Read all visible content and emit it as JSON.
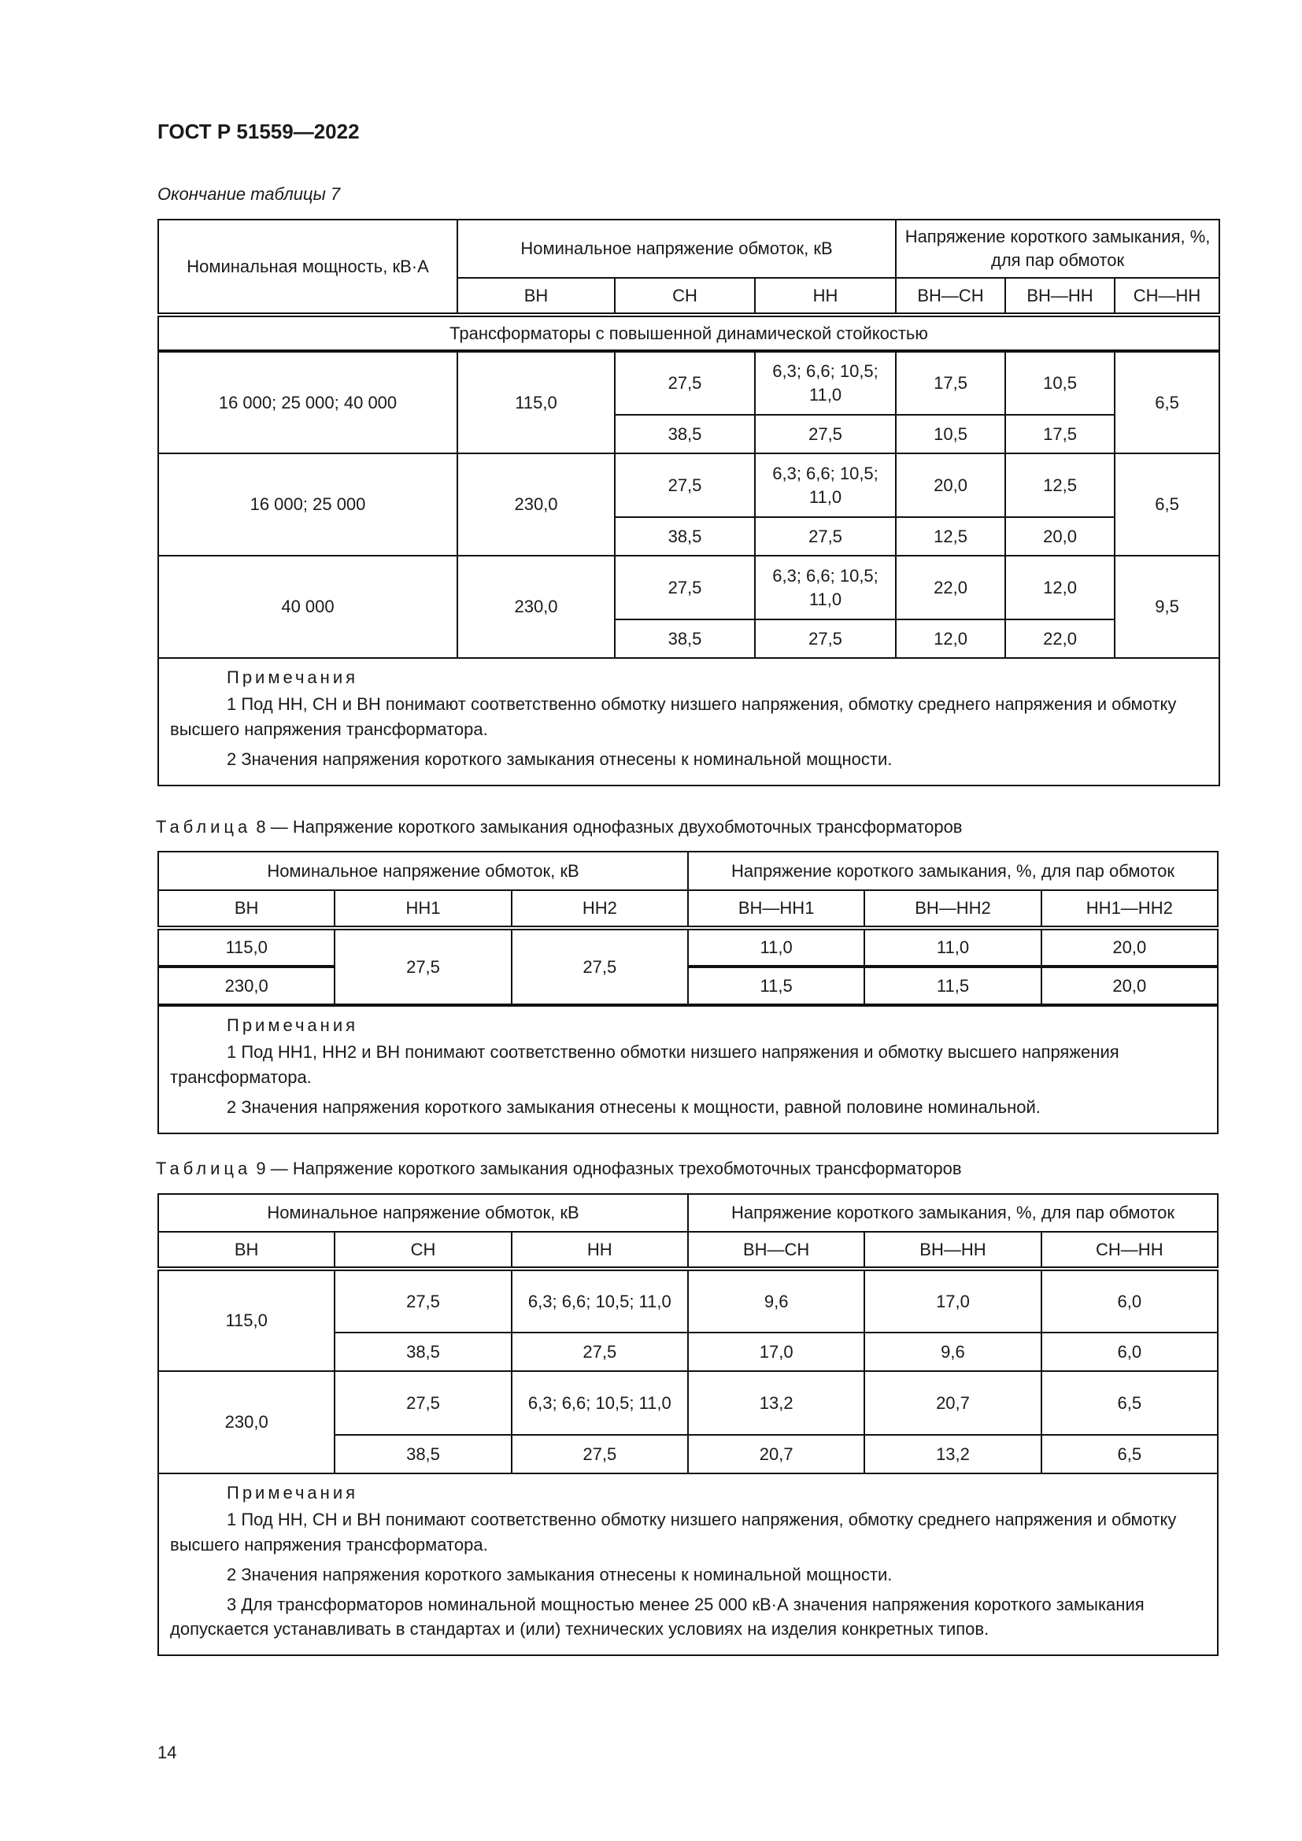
{
  "header": {
    "doc_id": "ГОСТ Р 51559—2022"
  },
  "table7": {
    "caption": "Окончание таблицы 7",
    "head": {
      "power": "Номинальная мощность, кВ·А",
      "voltage": "Номинальное напряжение обмоток, кВ",
      "sc": "Напряжение короткого замыкания, %, для пар обмоток",
      "cols": [
        "ВН",
        "СН",
        "НН",
        "ВН—СН",
        "ВН—НН",
        "СН—НН"
      ]
    },
    "group": "Трансформаторы с повышенной динамической стойкостью",
    "blocks": [
      {
        "power": "16 000; 25 000; 40 000",
        "vn": "115,0",
        "snnn": "6,5",
        "rows": [
          [
            "27,5",
            "6,3; 6,6; 10,5; 11,0",
            "17,5",
            "10,5"
          ],
          [
            "38,5",
            "27,5",
            "10,5",
            "17,5"
          ]
        ]
      },
      {
        "power": "16 000; 25 000",
        "vn": "230,0",
        "snnn": "6,5",
        "rows": [
          [
            "27,5",
            "6,3; 6,6; 10,5; 11,0",
            "20,0",
            "12,5"
          ],
          [
            "38,5",
            "27,5",
            "12,5",
            "20,0"
          ]
        ]
      },
      {
        "power": "40 000",
        "vn": "230,0",
        "snnn": "9,5",
        "rows": [
          [
            "27,5",
            "6,3; 6,6; 10,5; 11,0",
            "22,0",
            "12,0"
          ],
          [
            "38,5",
            "27,5",
            "12,0",
            "22,0"
          ]
        ]
      }
    ],
    "notes_title": "Примечания",
    "notes": [
      "1 Под НН, СН и ВН понимают соответственно обмотку низшего напряжения, обмотку среднего напряжения и обмотку высшего напряжения трансформатора.",
      "2 Значения напряжения короткого замыкания отнесены к номинальной мощности."
    ]
  },
  "table8": {
    "caption_label": "Таблица",
    "caption": "8 — Напряжение короткого замыкания однофазных двухобмоточных трансформаторов",
    "head": {
      "voltage": "Номинальное напряжение обмоток, кВ",
      "sc": "Напряжение короткого замыкания, %, для пар обмоток",
      "cols": [
        "ВН",
        "НН1",
        "НН2",
        "ВН—НН1",
        "ВН—НН2",
        "НН1—НН2"
      ]
    },
    "nn1": "27,5",
    "nn2": "27,5",
    "rows": [
      [
        "115,0",
        "11,0",
        "11,0",
        "20,0"
      ],
      [
        "230,0",
        "11,5",
        "11,5",
        "20,0"
      ]
    ],
    "notes_title": "Примечания",
    "notes": [
      "1 Под НН1, НН2 и ВН понимают соответственно обмотки низшего напряжения и обмотку высшего напряжения трансформатора.",
      "2 Значения напряжения короткого замыкания отнесены к мощности, равной половине номинальной."
    ]
  },
  "table9": {
    "caption_label": "Таблица",
    "caption": "9 — Напряжение короткого замыкания однофазных трехобмоточных трансформаторов",
    "head": {
      "voltage": "Номинальное напряжение обмоток, кВ",
      "sc": "Напряжение короткого замыкания, %, для пар обмоток",
      "cols": [
        "ВН",
        "СН",
        "НН",
        "ВН—СН",
        "ВН—НН",
        "СН—НН"
      ]
    },
    "blocks": [
      {
        "vn": "115,0",
        "rows": [
          [
            "27,5",
            "6,3; 6,6; 10,5; 11,0",
            "9,6",
            "17,0",
            "6,0"
          ],
          [
            "38,5",
            "27,5",
            "17,0",
            "9,6",
            "6,0"
          ]
        ]
      },
      {
        "vn": "230,0",
        "rows": [
          [
            "27,5",
            "6,3; 6,6; 10,5; 11,0",
            "13,2",
            "20,7",
            "6,5"
          ],
          [
            "38,5",
            "27,5",
            "20,7",
            "13,2",
            "6,5"
          ]
        ]
      }
    ],
    "notes_title": "Примечания",
    "notes": [
      "1 Под НН, СН и ВН понимают соответственно обмотку низшего напряжения, обмотку среднего напряжения и обмотку высшего напряжения трансформатора.",
      "2 Значения напряжения короткого замыкания отнесены к номинальной мощности.",
      "3 Для трансформаторов номинальной мощностью менее 25 000 кВ·А значения напряжения короткого замыкания допускается устанавливать в стандартах и (или) технических условиях на изделия конкретных типов."
    ]
  },
  "footer": {
    "page_number": "14"
  }
}
